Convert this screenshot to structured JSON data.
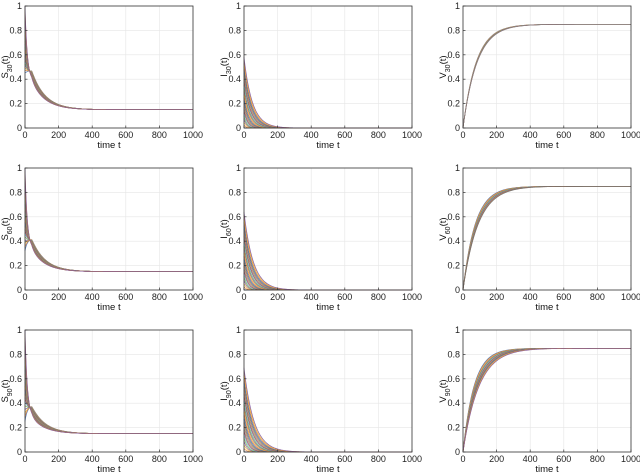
{
  "figure": {
    "xlabel": "time t",
    "x_ticks": [
      0,
      200,
      400,
      600,
      800,
      1000
    ],
    "y_ticks": [
      0,
      0.2,
      0.4,
      0.6,
      0.8,
      1
    ],
    "y_tick_labels": [
      "0",
      "0.2",
      "0.4",
      "0.6",
      "0.8",
      "1"
    ]
  },
  "chart_data": [
    {
      "type": "line",
      "xlabel": "time t",
      "ylabel_var": "S",
      "ylabel_sub": "30",
      "ylabel_arg": "(t)",
      "xlim": [
        0,
        1000
      ],
      "ylim": [
        0,
        1
      ],
      "grid": true,
      "n_curves": 24,
      "curves": {
        "kind": "S",
        "init_range": [
          0.45,
          1.0
        ],
        "dip_range": [
          0.47,
          0.38
        ],
        "final": 0.15,
        "tau": 80
      }
    },
    {
      "type": "line",
      "xlabel": "time t",
      "ylabel_var": "I",
      "ylabel_sub": "30",
      "ylabel_arg": "(t)",
      "xlim": [
        0,
        1000
      ],
      "ylim": [
        0,
        1
      ],
      "grid": true,
      "n_curves": 24,
      "curves": {
        "kind": "I",
        "init_range": [
          0.0,
          0.58
        ],
        "final": 0.0,
        "decay_tau_range": [
          10,
          50
        ]
      }
    },
    {
      "type": "line",
      "xlabel": "time t",
      "ylabel_var": "V",
      "ylabel_sub": "30",
      "ylabel_arg": "(t)",
      "xlim": [
        0,
        1000
      ],
      "ylim": [
        0,
        1
      ],
      "grid": true,
      "n_curves": 8,
      "curves": {
        "kind": "V",
        "init": 0.0,
        "final": 0.85,
        "tau_range": [
          78,
          84
        ]
      }
    },
    {
      "type": "line",
      "xlabel": "time t",
      "ylabel_var": "S",
      "ylabel_sub": "60",
      "ylabel_arg": "(t)",
      "xlim": [
        0,
        1000
      ],
      "ylim": [
        0,
        1
      ],
      "grid": true,
      "n_curves": 24,
      "curves": {
        "kind": "S",
        "init_range": [
          0.32,
          1.0
        ],
        "dip_range": [
          0.42,
          0.33
        ],
        "final": 0.15,
        "tau": 80
      }
    },
    {
      "type": "line",
      "xlabel": "time t",
      "ylabel_var": "I",
      "ylabel_sub": "60",
      "ylabel_arg": "(t)",
      "xlim": [
        0,
        1000
      ],
      "ylim": [
        0,
        1
      ],
      "grid": true,
      "n_curves": 24,
      "curves": {
        "kind": "I",
        "init_range": [
          0.0,
          0.64
        ],
        "final": 0.0,
        "decay_tau_range": [
          12,
          55
        ]
      }
    },
    {
      "type": "line",
      "xlabel": "time t",
      "ylabel_var": "V",
      "ylabel_sub": "60",
      "ylabel_arg": "(t)",
      "xlim": [
        0,
        1000
      ],
      "ylim": [
        0,
        1
      ],
      "grid": true,
      "n_curves": 10,
      "curves": {
        "kind": "V",
        "init": 0.0,
        "final": 0.85,
        "tau_range": [
          72,
          90
        ]
      }
    },
    {
      "type": "line",
      "xlabel": "time t",
      "ylabel_var": "S",
      "ylabel_sub": "90",
      "ylabel_arg": "(t)",
      "xlim": [
        0,
        1000
      ],
      "ylim": [
        0,
        1
      ],
      "grid": true,
      "n_curves": 24,
      "curves": {
        "kind": "S",
        "init_range": [
          0.25,
          1.0
        ],
        "dip_range": [
          0.38,
          0.28
        ],
        "final": 0.15,
        "tau": 80
      }
    },
    {
      "type": "line",
      "xlabel": "time t",
      "ylabel_var": "I",
      "ylabel_sub": "90",
      "ylabel_arg": "(t)",
      "xlim": [
        0,
        1000
      ],
      "ylim": [
        0,
        1
      ],
      "grid": true,
      "n_curves": 24,
      "curves": {
        "kind": "I",
        "init_range": [
          0.0,
          0.69
        ],
        "final": 0.0,
        "decay_tau_range": [
          14,
          60
        ]
      }
    },
    {
      "type": "line",
      "xlabel": "time t",
      "ylabel_var": "V",
      "ylabel_sub": "90",
      "ylabel_arg": "(t)",
      "xlim": [
        0,
        1000
      ],
      "ylim": [
        0,
        1
      ],
      "grid": true,
      "n_curves": 14,
      "curves": {
        "kind": "V",
        "init": 0.0,
        "final": 0.85,
        "tau_range": [
          65,
          95
        ]
      }
    }
  ],
  "palette": [
    "#3b6fb6",
    "#e07b39",
    "#f1b82d",
    "#7a4fa0",
    "#7fae3e",
    "#5fb8dc",
    "#a8323a",
    "#8a8a8a",
    "#b57a4a",
    "#6b6b6b"
  ],
  "colors": {
    "axis": "#333333",
    "grid": "#e6e6e6",
    "background": "#ffffff"
  }
}
